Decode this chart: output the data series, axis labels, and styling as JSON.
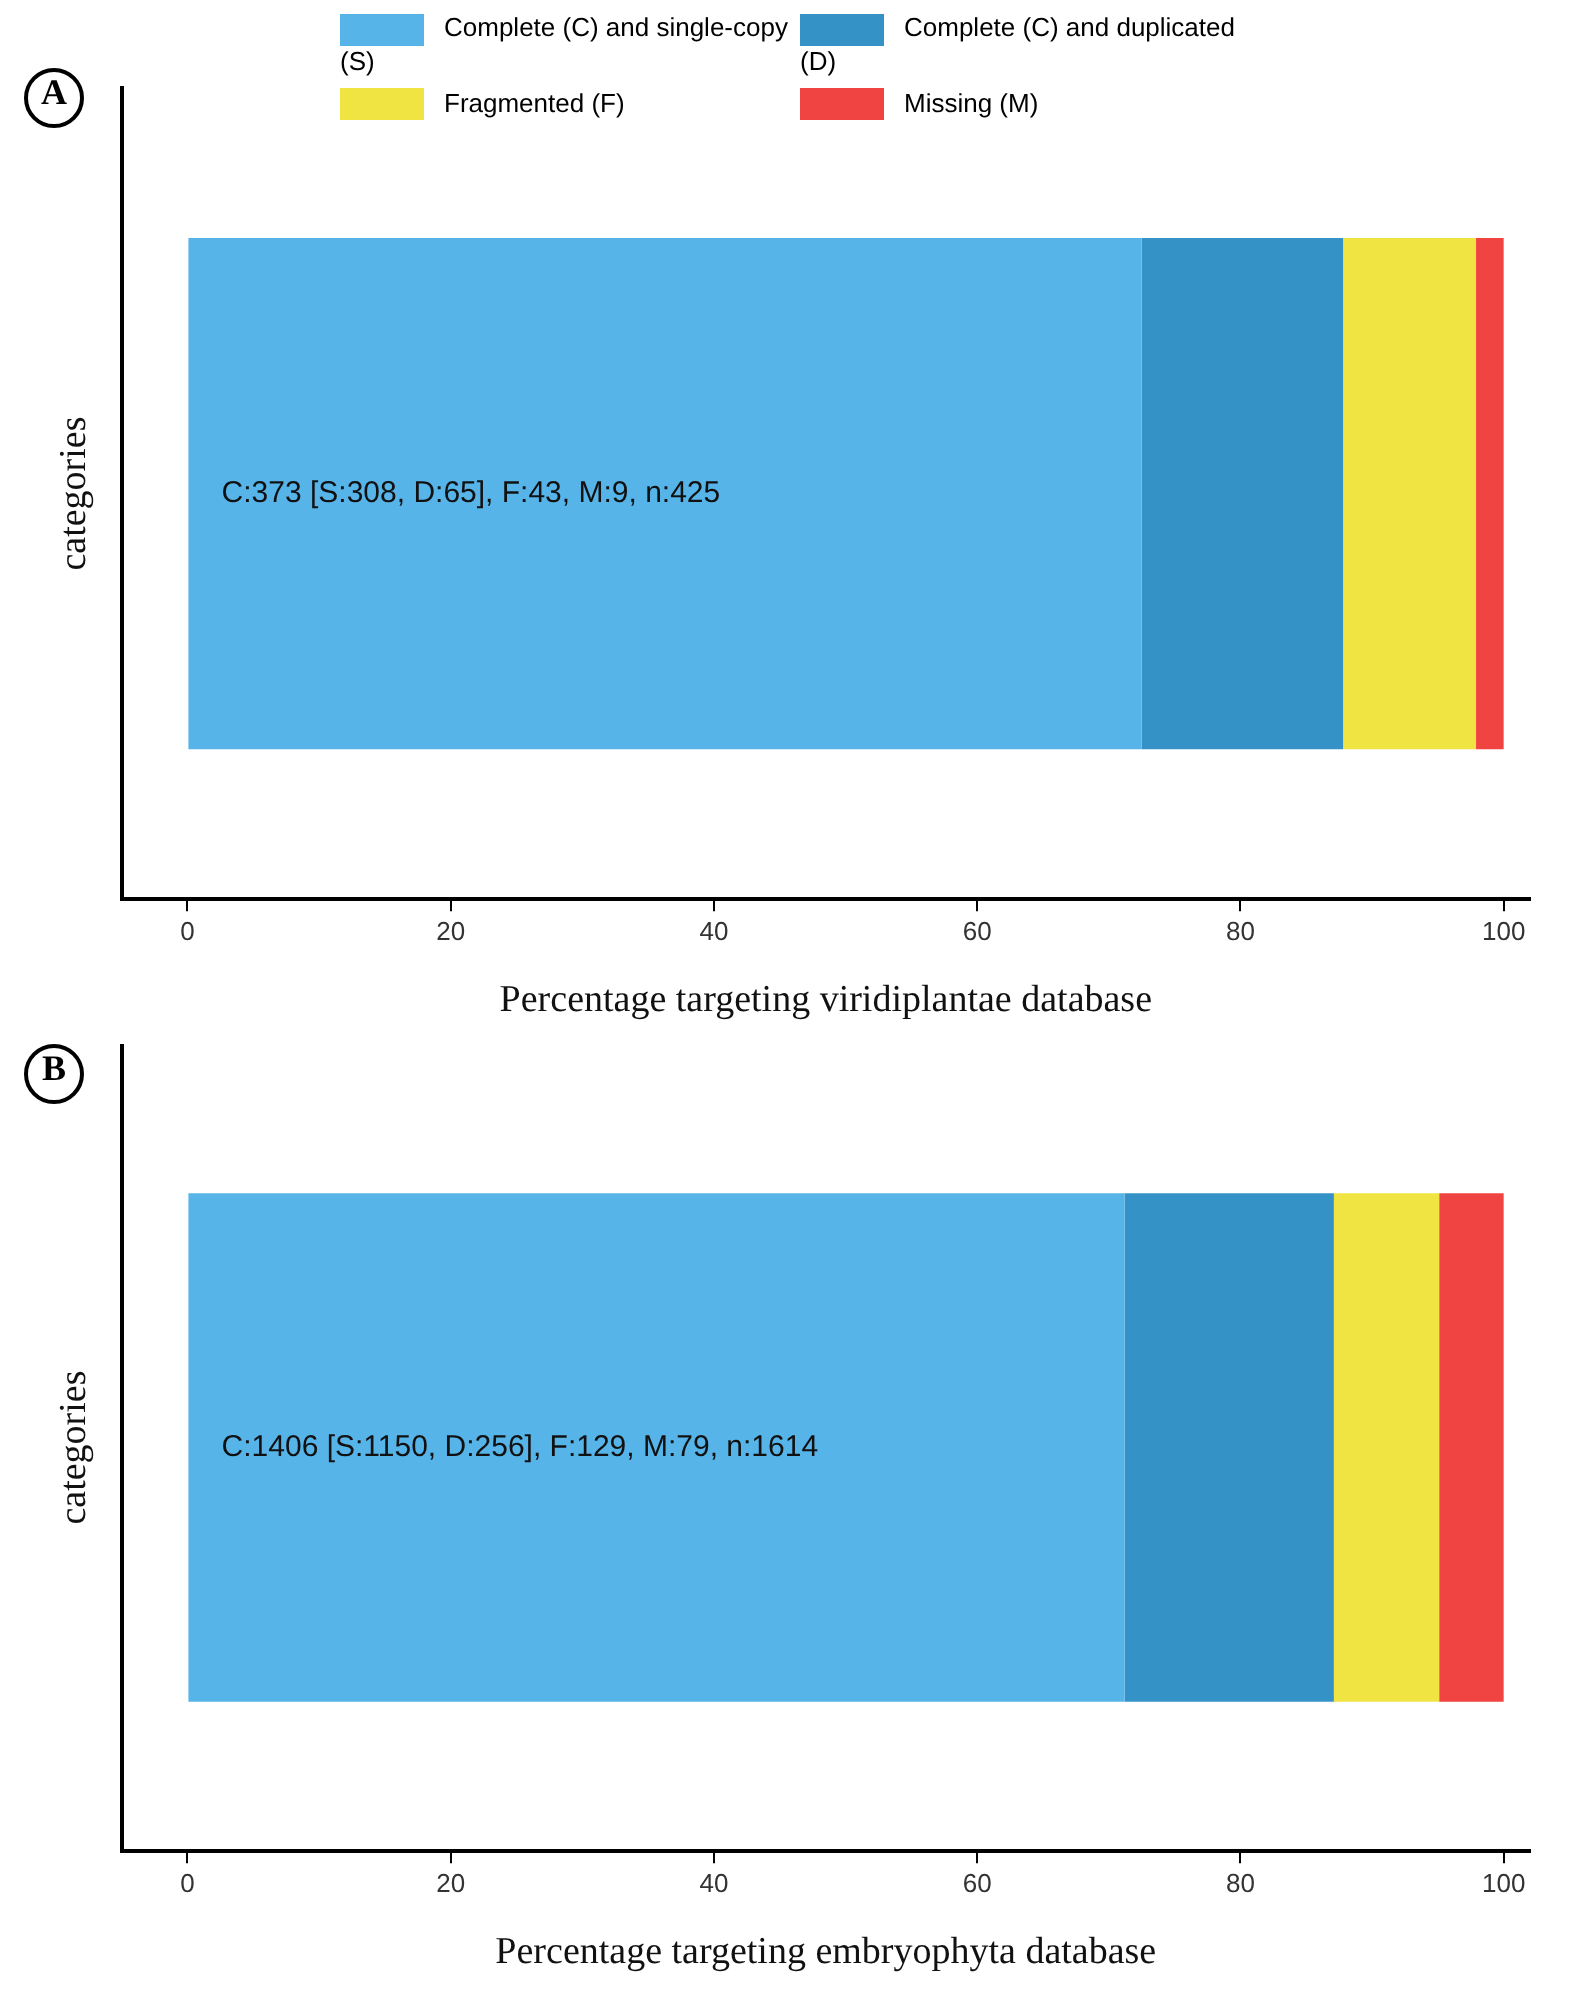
{
  "chart_data": [
    {
      "type": "bar",
      "title": "A",
      "orientation": "horizontal",
      "stacked": true,
      "categories": [
        null
      ],
      "xlabel": "Percentage targeting viridiplantae database",
      "ylabel": "categories",
      "xlim": [
        -5,
        102
      ],
      "xticks": [
        0,
        20,
        40,
        60,
        80,
        100
      ],
      "tick_labels": "x",
      "legend": "top",
      "grid": false,
      "annotations": [
        "C:373 [S:308, D:65], F:43, M:9, n:425"
      ],
      "series": [
        {
          "name": "Complete (C) and single-copy (S)",
          "color": "#56b4e9",
          "values": [
            72.5
          ]
        },
        {
          "name": "Complete (C) and duplicated (D)",
          "color": "#3492c7",
          "values": [
            15.3
          ]
        },
        {
          "name": "Fragmented (F)",
          "color": "#f0e442",
          "values": [
            10.1
          ]
        },
        {
          "name": "Missing (M)",
          "color": "#f04442",
          "values": [
            2.1
          ]
        }
      ]
    },
    {
      "type": "bar",
      "title": "B",
      "orientation": "horizontal",
      "stacked": true,
      "categories": [
        null
      ],
      "xlabel": "Percentage targeting embryophyta database",
      "ylabel": "categories",
      "xlim": [
        -5,
        102
      ],
      "xticks": [
        0,
        20,
        40,
        60,
        80,
        100
      ],
      "tick_labels": "x",
      "grid": false,
      "annotations": [
        "C:1406 [S:1150, D:256], F:129, M:79, n:1614"
      ],
      "series": [
        {
          "color": "#56b4e9",
          "values": [
            71.2
          ]
        },
        {
          "color": "#3492c7",
          "values": [
            15.9
          ]
        },
        {
          "color": "#f0e442",
          "values": [
            8.0
          ]
        },
        {
          "color": "#f04442",
          "values": [
            4.9
          ]
        }
      ]
    }
  ]
}
